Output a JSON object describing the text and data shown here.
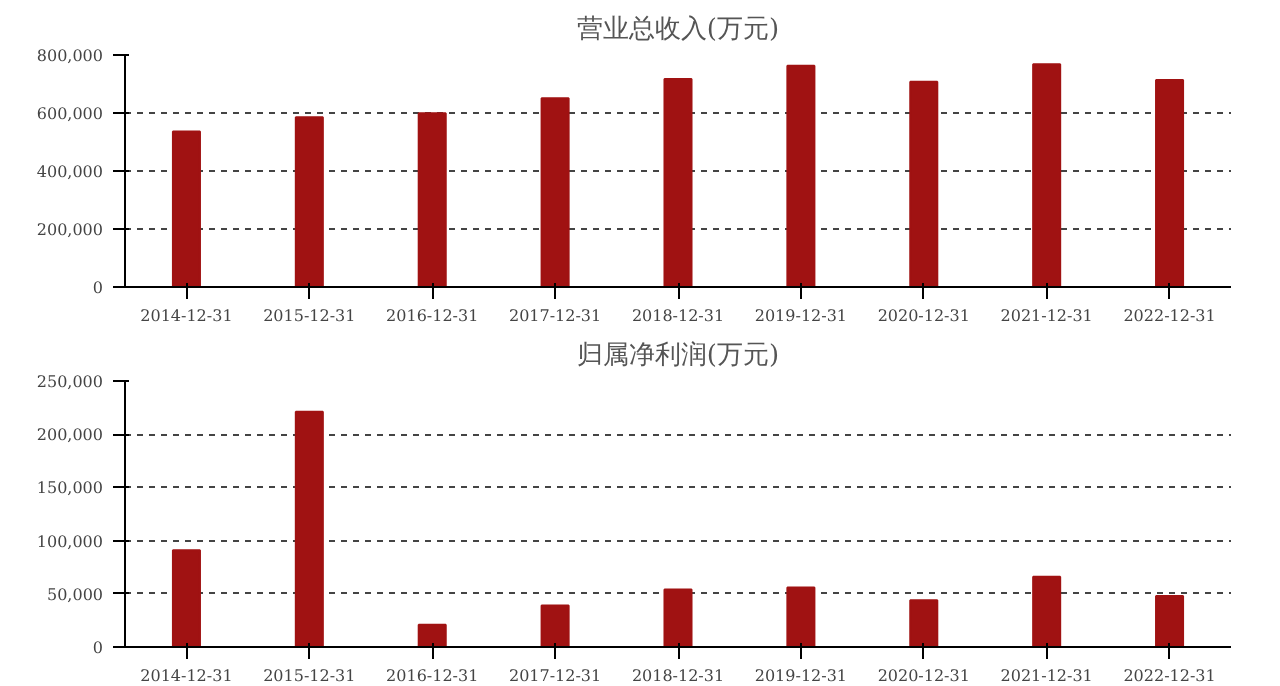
{
  "chart_data": [
    {
      "type": "bar",
      "title": "营业总收入(万元)",
      "categories": [
        "2014-12-31",
        "2015-12-31",
        "2016-12-31",
        "2017-12-31",
        "2018-12-31",
        "2019-12-31",
        "2020-12-31",
        "2021-12-31",
        "2022-12-31"
      ],
      "values": [
        536000,
        585000,
        599000,
        651000,
        717000,
        763000,
        708000,
        768000,
        714000
      ],
      "color": "#a01212",
      "ylim": [
        0,
        800000
      ],
      "yticks": [
        0,
        {
          "value": 200000,
          "label": "200,000"
        },
        {
          "value": 400000,
          "label": "400,000"
        },
        {
          "value": 600000,
          "label": "600,000"
        },
        {
          "value": 800000,
          "label": "800,000"
        }
      ],
      "grid": "y",
      "line_style": "dashed"
    },
    {
      "type": "bar",
      "title": "归属净利润(万元)",
      "categories": [
        "2014-12-31",
        "2015-12-31",
        "2016-12-31",
        "2017-12-31",
        "2018-12-31",
        "2019-12-31",
        "2020-12-31",
        "2021-12-31",
        "2022-12-31"
      ],
      "values": [
        91000,
        221000,
        21000,
        39000,
        54000,
        56000,
        44000,
        66000,
        48000
      ],
      "color": "#a01212",
      "ylim": [
        0,
        250000
      ],
      "yticks": [
        0,
        {
          "value": 50000,
          "label": "50,000"
        },
        {
          "value": 100000,
          "label": "100,000"
        },
        {
          "value": 150000,
          "label": "150,000"
        },
        {
          "value": 200000,
          "label": "200,000"
        },
        {
          "value": 250000,
          "label": "250,000"
        }
      ],
      "grid": "y",
      "line_style": "dashed"
    }
  ]
}
